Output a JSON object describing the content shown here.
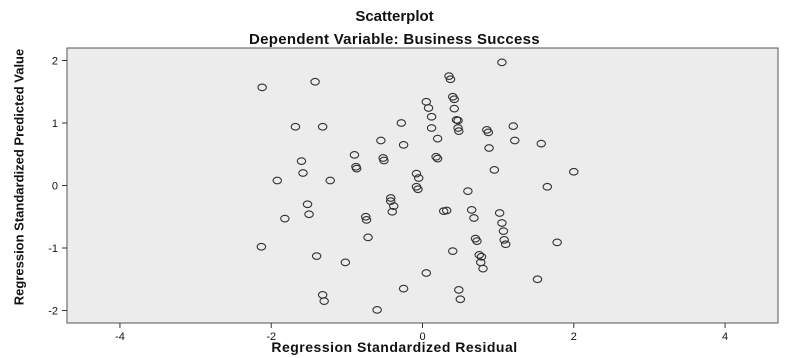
{
  "chart_data": {
    "type": "scatter",
    "title": "Scatterplot",
    "subtitle": "Dependent Variable: Business Success",
    "xlabel": "Regression Standardized Residual",
    "ylabel": "Regression Standardized Predicted Value",
    "xlim": [
      -4.7,
      4.7
    ],
    "ylim": [
      -2.2,
      2.2
    ],
    "xticks": [
      -4,
      -2,
      0,
      2,
      4
    ],
    "yticks": [
      -2,
      -1,
      0,
      1,
      2
    ],
    "xtick_labels": [
      "-4",
      "-2",
      "0",
      "2",
      "4"
    ],
    "ytick_labels": [
      "-2",
      "-1",
      "0",
      "1",
      "2"
    ],
    "grid": false,
    "plot_background": "#ececec",
    "marker_color": "#333333",
    "points": [
      [
        1.05,
        1.97
      ],
      [
        -2.12,
        1.57
      ],
      [
        -1.42,
        1.66
      ],
      [
        0.35,
        1.75
      ],
      [
        0.37,
        1.7
      ],
      [
        0.4,
        1.42
      ],
      [
        0.42,
        1.38
      ],
      [
        0.05,
        1.34
      ],
      [
        0.08,
        1.24
      ],
      [
        0.42,
        1.23
      ],
      [
        0.12,
        1.1
      ],
      [
        0.45,
        1.05
      ],
      [
        0.47,
        1.04
      ],
      [
        -0.28,
        1.0
      ],
      [
        -1.68,
        0.94
      ],
      [
        -1.32,
        0.94
      ],
      [
        0.12,
        0.92
      ],
      [
        0.47,
        0.92
      ],
      [
        0.48,
        0.87
      ],
      [
        0.85,
        0.89
      ],
      [
        0.87,
        0.85
      ],
      [
        1.2,
        0.95
      ],
      [
        0.2,
        0.75
      ],
      [
        1.22,
        0.72
      ],
      [
        1.57,
        0.67
      ],
      [
        -0.55,
        0.72
      ],
      [
        -0.25,
        0.65
      ],
      [
        0.88,
        0.6
      ],
      [
        -0.9,
        0.49
      ],
      [
        -0.52,
        0.44
      ],
      [
        -0.51,
        0.4
      ],
      [
        -1.6,
        0.39
      ],
      [
        0.18,
        0.46
      ],
      [
        0.2,
        0.43
      ],
      [
        -0.88,
        0.3
      ],
      [
        -0.87,
        0.27
      ],
      [
        0.95,
        0.25
      ],
      [
        -1.58,
        0.2
      ],
      [
        -0.08,
        0.19
      ],
      [
        -0.05,
        0.12
      ],
      [
        2.0,
        0.22
      ],
      [
        -1.92,
        0.08
      ],
      [
        -1.22,
        0.08
      ],
      [
        -0.08,
        -0.02
      ],
      [
        -0.06,
        -0.06
      ],
      [
        1.65,
        -0.02
      ],
      [
        0.6,
        -0.09
      ],
      [
        -0.42,
        -0.2
      ],
      [
        -0.42,
        -0.25
      ],
      [
        -0.38,
        -0.33
      ],
      [
        -1.52,
        -0.3
      ],
      [
        -1.5,
        -0.46
      ],
      [
        -0.4,
        -0.42
      ],
      [
        0.28,
        -0.41
      ],
      [
        0.32,
        -0.4
      ],
      [
        0.65,
        -0.39
      ],
      [
        1.02,
        -0.44
      ],
      [
        -0.75,
        -0.5
      ],
      [
        -0.74,
        -0.55
      ],
      [
        -1.82,
        -0.53
      ],
      [
        0.68,
        -0.52
      ],
      [
        1.05,
        -0.6
      ],
      [
        1.07,
        -0.73
      ],
      [
        -0.72,
        -0.83
      ],
      [
        0.7,
        -0.85
      ],
      [
        0.72,
        -0.89
      ],
      [
        1.08,
        -0.87
      ],
      [
        1.1,
        -0.94
      ],
      [
        1.78,
        -0.91
      ],
      [
        -2.13,
        -0.98
      ],
      [
        0.4,
        -1.05
      ],
      [
        0.75,
        -1.11
      ],
      [
        0.78,
        -1.14
      ],
      [
        0.77,
        -1.23
      ],
      [
        -1.4,
        -1.13
      ],
      [
        -1.02,
        -1.23
      ],
      [
        0.8,
        -1.33
      ],
      [
        0.05,
        -1.4
      ],
      [
        1.52,
        -1.5
      ],
      [
        -0.25,
        -1.65
      ],
      [
        0.48,
        -1.67
      ],
      [
        -1.32,
        -1.75
      ],
      [
        -1.3,
        -1.85
      ],
      [
        0.5,
        -1.82
      ],
      [
        -0.6,
        -1.99
      ]
    ]
  }
}
